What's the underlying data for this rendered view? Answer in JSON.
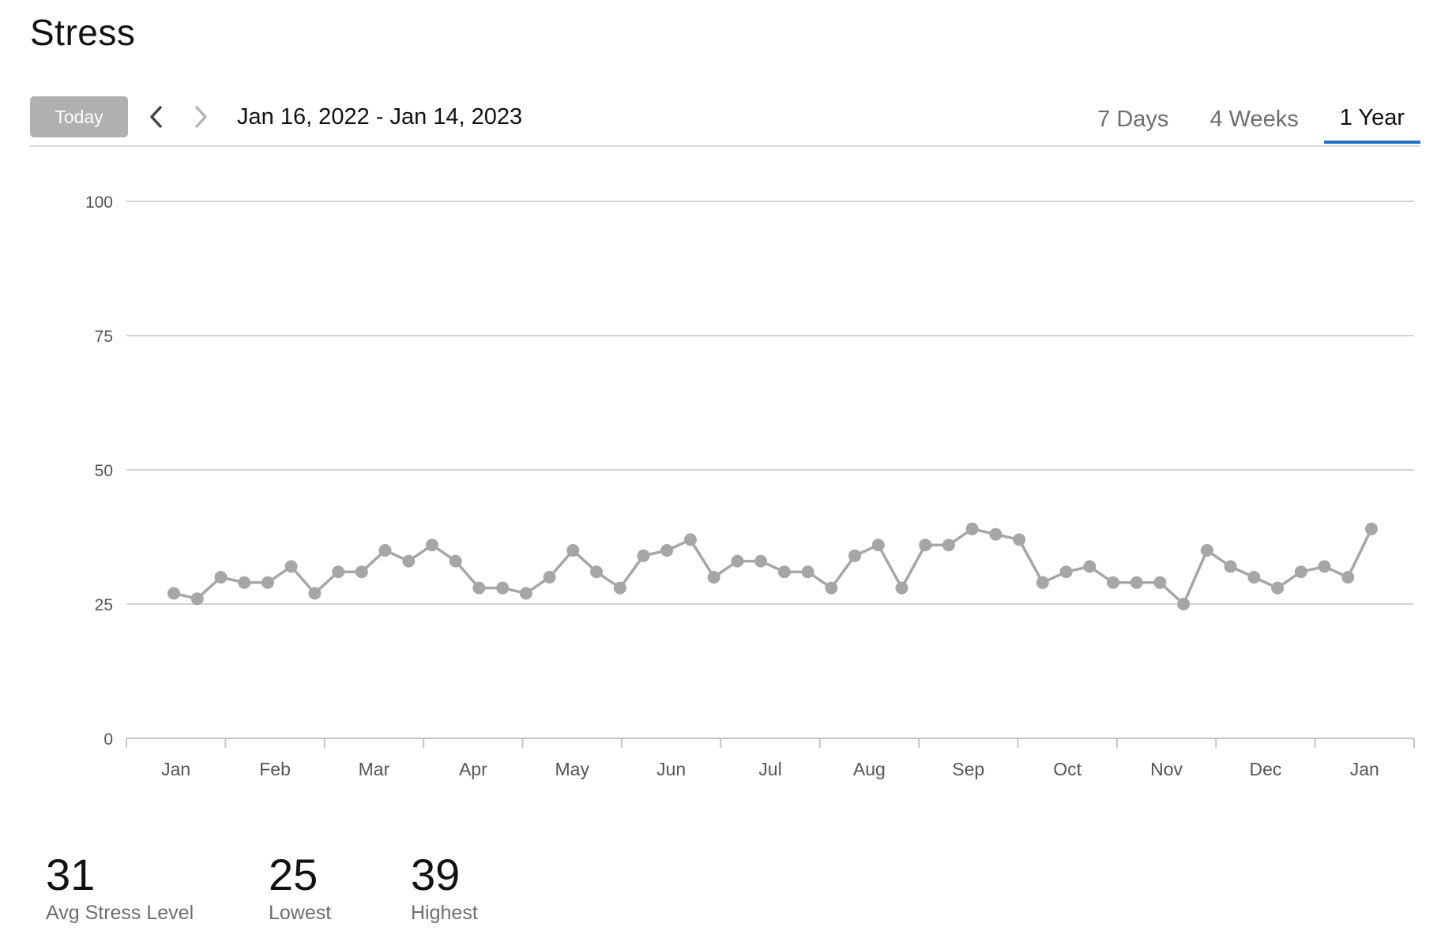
{
  "header": {
    "title": "Stress"
  },
  "toolbar": {
    "today_label": "Today",
    "prev_icon": "chevron-left-icon",
    "next_icon": "chevron-right-icon",
    "date_range": "Jan 16, 2022 - Jan 14, 2023",
    "tabs": [
      {
        "label": "7 Days",
        "active": false
      },
      {
        "label": "4 Weeks",
        "active": false
      },
      {
        "label": "1 Year",
        "active": true
      }
    ]
  },
  "colors": {
    "accent": "#1a73c8",
    "series": "#a6a6a6",
    "grid": "#d4d4d4",
    "today_button": "#b0b0b0"
  },
  "chart_data": {
    "type": "line",
    "title": "",
    "xlabel": "",
    "ylabel": "",
    "ylim": [
      0,
      100
    ],
    "yticks": [
      0,
      25,
      50,
      75,
      100
    ],
    "xtick_labels": [
      "Jan",
      "Feb",
      "Mar",
      "Apr",
      "May",
      "Jun",
      "Jul",
      "Aug",
      "Sep",
      "Oct",
      "Nov",
      "Dec",
      "Jan"
    ],
    "grid": true,
    "series": [
      {
        "values": [
          27,
          26,
          30,
          29,
          29,
          32,
          27,
          31,
          31,
          35,
          33,
          36,
          33,
          28,
          28,
          27,
          30,
          35,
          31,
          28,
          34,
          35,
          37,
          30,
          33,
          33,
          31,
          31,
          28,
          34,
          36,
          28,
          36,
          36,
          39,
          38,
          37,
          29,
          31,
          32,
          29,
          29,
          29,
          25,
          35,
          32,
          30,
          28,
          31,
          32,
          30,
          39
        ]
      }
    ]
  },
  "stats": [
    {
      "value": "31",
      "label": "Avg Stress Level"
    },
    {
      "value": "25",
      "label": "Lowest"
    },
    {
      "value": "39",
      "label": "Highest"
    }
  ]
}
